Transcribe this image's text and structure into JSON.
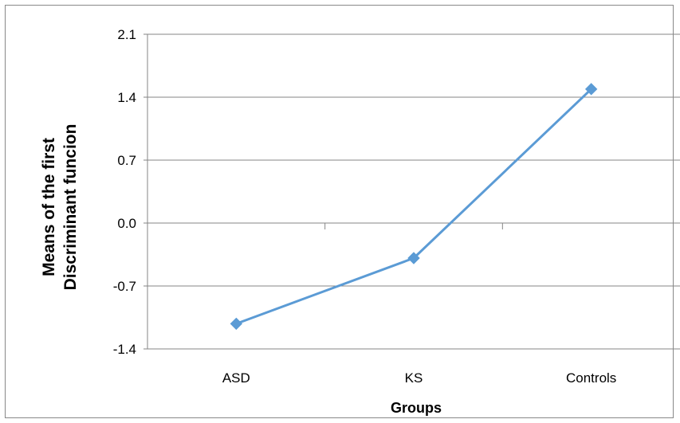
{
  "chart_data": {
    "type": "line",
    "categories": [
      "ASD",
      "KS",
      "Controls"
    ],
    "series": [
      {
        "values": [
          -1.12,
          -0.39,
          1.49
        ]
      }
    ],
    "xlabel": "Groups",
    "ylabel_lines": [
      "Means of the first",
      "Discriminant funcion"
    ],
    "ylim": [
      -1.4,
      2.1
    ],
    "yticks": [
      -1.4,
      -0.7,
      0.0,
      0.7,
      1.4,
      2.1
    ],
    "ytick_labels": [
      "-1.4",
      "-0.7",
      "0.0",
      "0.7",
      "1.4",
      "2.1"
    ],
    "grid": true,
    "legend": "none",
    "colors": {
      "series": "#5b9bd5",
      "grid": "#868686",
      "axis": "#868686"
    }
  }
}
